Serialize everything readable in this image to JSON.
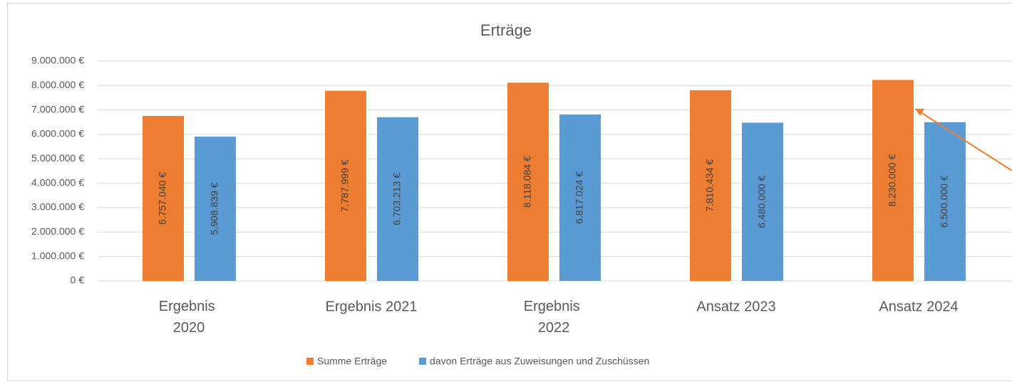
{
  "chart_data": {
    "type": "bar",
    "title": "Erträge",
    "categories": [
      "Ergebnis 2020",
      "Ergebnis 2021",
      "Ergebnis 2022",
      "Ansatz 2023",
      "Ansatz 2024"
    ],
    "series": [
      {
        "name": "Summe Erträge",
        "color": "#ed7d31",
        "values": [
          6757040,
          7787999,
          8118084,
          7810434,
          8230000
        ],
        "value_labels": [
          "6.757.040 €",
          "7.787.999 €",
          "8.118.084 €",
          "7.810.434 €",
          "8.230.000 €"
        ]
      },
      {
        "name": "davon Erträge aus Zuweisungen und Zuschüssen",
        "color": "#5b9bd5",
        "values": [
          5908839,
          6703213,
          6817024,
          6480000,
          6500000
        ],
        "value_labels": [
          "5.908.839 €",
          "6.703.213 €",
          "6.817.024 €",
          "6.480.000 €",
          "6.500.000 €"
        ]
      }
    ],
    "ylim": [
      0,
      9000000
    ],
    "yticks": [
      {
        "value": 0,
        "label": "0 €"
      },
      {
        "value": 1000000,
        "label": "1.000.000 €"
      },
      {
        "value": 2000000,
        "label": "2.000.000 €"
      },
      {
        "value": 3000000,
        "label": "3.000.000 €"
      },
      {
        "value": 4000000,
        "label": "4.000.000 €"
      },
      {
        "value": 5000000,
        "label": "5.000.000 €"
      },
      {
        "value": 6000000,
        "label": "6.000.000 €"
      },
      {
        "value": 7000000,
        "label": "7.000.000 €"
      },
      {
        "value": 8000000,
        "label": "8.000.000 €"
      },
      {
        "value": 9000000,
        "label": "9.000.000 €"
      }
    ],
    "grid": true,
    "legend": "bottom"
  }
}
